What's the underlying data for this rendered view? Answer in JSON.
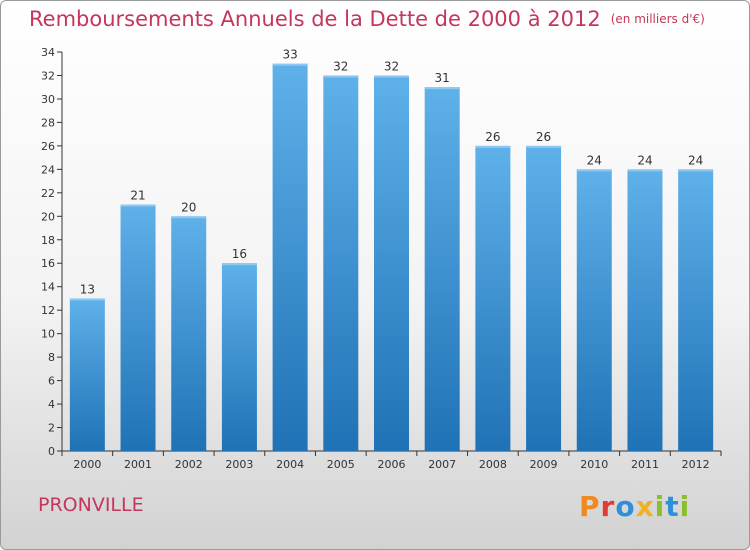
{
  "header": {
    "title": "Remboursements Annuels de la Dette de 2000 à 2012",
    "unit": "(en milliers d'€)"
  },
  "footer": {
    "location": "PRONVILLE",
    "logo_text": "Proxiti",
    "logo_colors": [
      "#f08a1f",
      "#e23a36",
      "#2f8fd8",
      "#f0b21f",
      "#8bbf2a",
      "#2f8fd8",
      "#8bbf2a"
    ]
  },
  "colors": {
    "title": "#c5365b",
    "bar_top": "#5fb1ea",
    "bar_bottom": "#1f72b5",
    "axis": "#333333"
  },
  "chart_data": {
    "type": "bar",
    "title": "Remboursements Annuels de la Dette de 2000 à 2012",
    "unit": "(en milliers d'€)",
    "categories": [
      "2000",
      "2001",
      "2002",
      "2003",
      "2004",
      "2005",
      "2006",
      "2007",
      "2008",
      "2009",
      "2010",
      "2011",
      "2012"
    ],
    "values": [
      13,
      21,
      20,
      16,
      33,
      32,
      32,
      31,
      26,
      26,
      24,
      24,
      24
    ],
    "xlabel": "",
    "ylabel": "",
    "ylim": [
      0,
      34
    ],
    "yticks": [
      0,
      2,
      4,
      6,
      8,
      10,
      12,
      14,
      16,
      18,
      20,
      22,
      24,
      26,
      28,
      30,
      32,
      34
    ],
    "grid": false,
    "data_labels": true
  }
}
